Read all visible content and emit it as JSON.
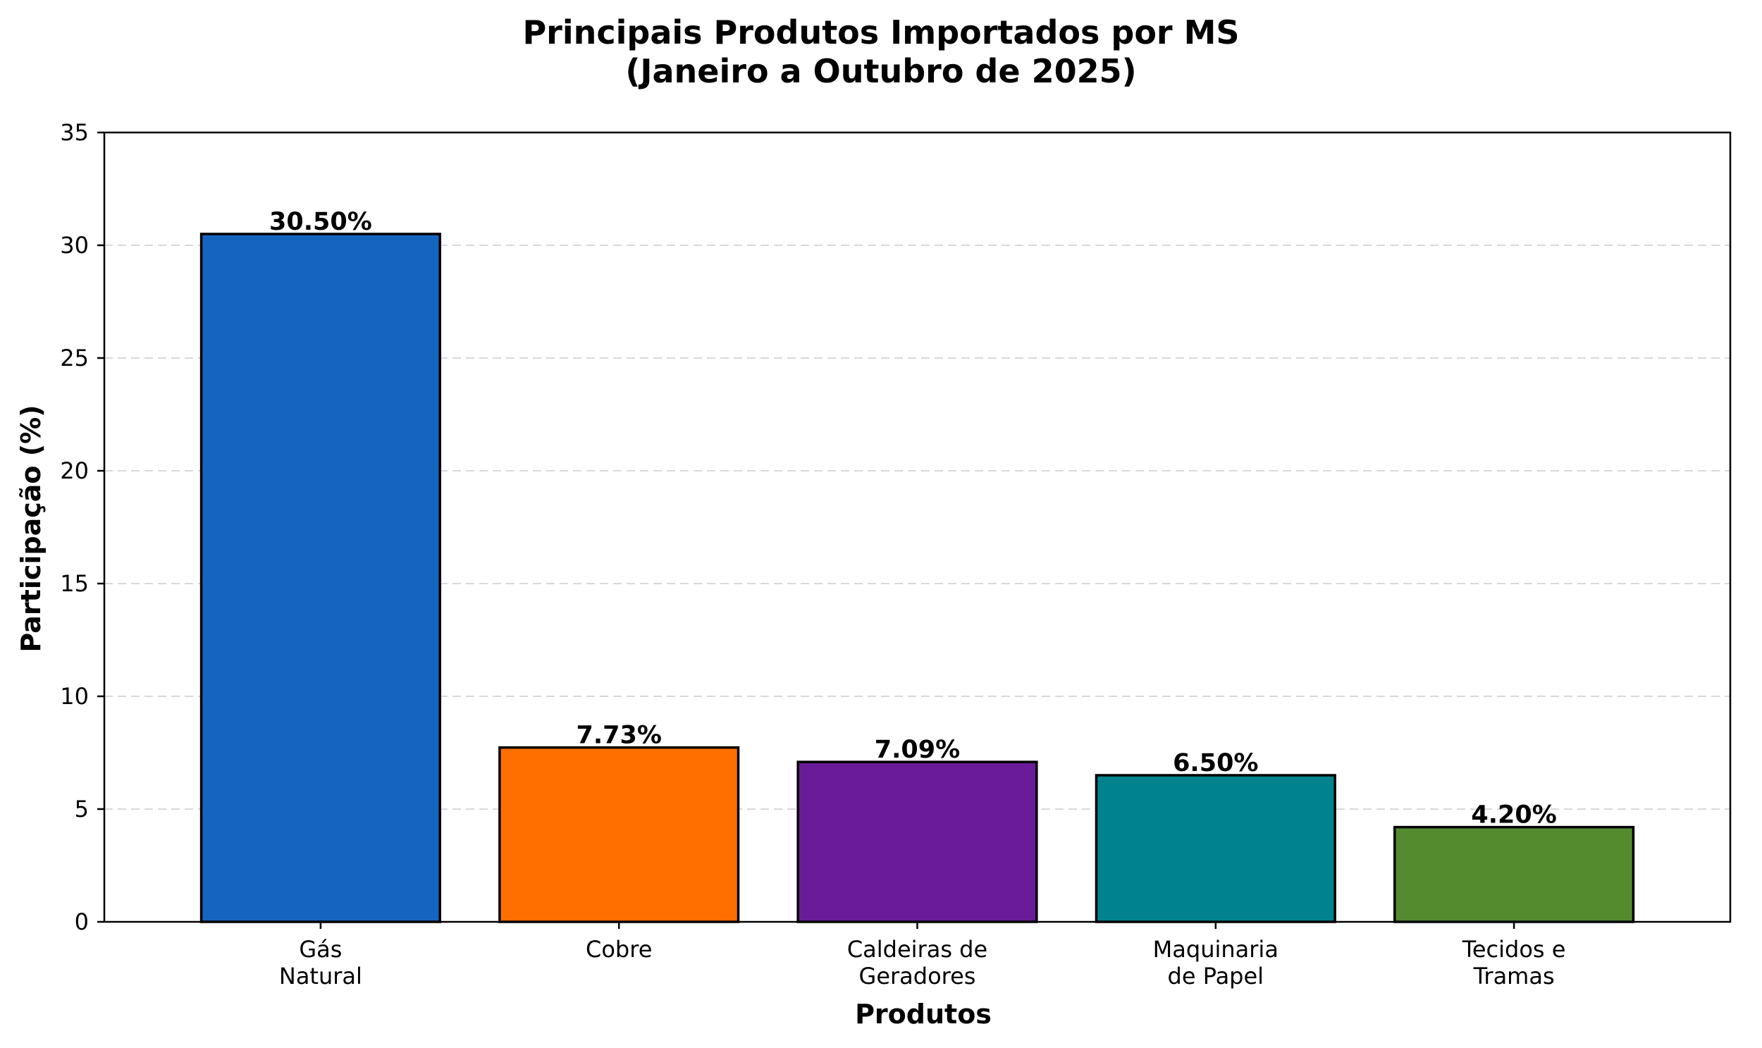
{
  "chart_data": {
    "type": "bar",
    "title": "Principais Produtos Importados por MS",
    "subtitle": "(Janeiro a Outubro de 2025)",
    "xlabel": "Produtos",
    "ylabel": "Participação (%)",
    "ylim": [
      0,
      35
    ],
    "yticks": [
      0,
      5,
      10,
      15,
      20,
      25,
      30,
      35
    ],
    "ytick_labels": [
      "0",
      "5",
      "10",
      "15",
      "20",
      "25",
      "30",
      "35"
    ],
    "grid": "y, dashed",
    "categories": [
      [
        "Gás",
        "Natural"
      ],
      [
        "Cobre"
      ],
      [
        "Caldeiras de",
        "Geradores"
      ],
      [
        "Maquinaria",
        "de Papel"
      ],
      [
        "Tecidos e",
        "Tramas"
      ]
    ],
    "values": [
      30.5,
      7.73,
      7.09,
      6.5,
      4.2
    ],
    "value_labels": [
      "30.50%",
      "7.73%",
      "7.09%",
      "6.50%",
      "4.20%"
    ],
    "colors": [
      "#1565C0",
      "#FF6F00",
      "#6A1B9A",
      "#00838F",
      "#558B2F"
    ]
  }
}
